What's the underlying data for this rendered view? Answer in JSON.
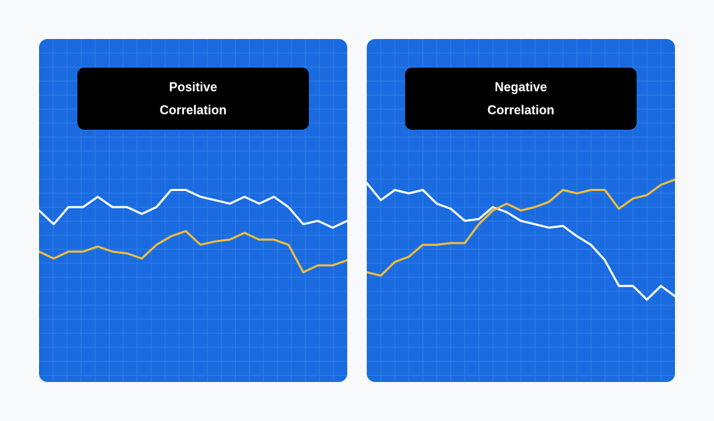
{
  "colors": {
    "background": "#f8f9fa",
    "panel": "#1a6be0",
    "grid": "#2f7ee8",
    "title_box": "#000000",
    "title_text": "#ffffff",
    "series_white": "#ffffff",
    "series_yellow": "#f0bd3c"
  },
  "chart_data": [
    {
      "type": "line",
      "title_line1": "Positive",
      "title_line2": "Correlation",
      "x": [
        0,
        1,
        2,
        3,
        4,
        5,
        6,
        7,
        8,
        9,
        10,
        11,
        12,
        13,
        14,
        15,
        16,
        17,
        18,
        19,
        20,
        21
      ],
      "ylim": [
        0,
        100
      ],
      "grid": true,
      "series": [
        {
          "color": "white",
          "values": [
            50,
            46,
            51,
            51,
            54,
            51,
            51,
            49,
            51,
            56,
            56,
            54,
            53,
            52,
            54,
            52,
            54,
            51,
            46,
            47,
            45,
            47
          ]
        },
        {
          "color": "yellow",
          "values": [
            38,
            36,
            38,
            38,
            39.5,
            38,
            37.5,
            36,
            40,
            42.5,
            44,
            40,
            41,
            41.5,
            43.5,
            41.5,
            41.5,
            40,
            32,
            34,
            34,
            35.5
          ]
        }
      ]
    },
    {
      "type": "line",
      "title_line1": "Negative",
      "title_line2": "Correlation",
      "x": [
        0,
        1,
        2,
        3,
        4,
        5,
        6,
        7,
        8,
        9,
        10,
        11,
        12,
        13,
        14,
        15,
        16,
        17,
        18,
        19,
        20,
        21,
        22
      ],
      "ylim": [
        0,
        100
      ],
      "grid": true,
      "series": [
        {
          "color": "white",
          "values": [
            58,
            53,
            56,
            55,
            56,
            52,
            50.5,
            47,
            47.5,
            51,
            49.5,
            47,
            46,
            45,
            45.5,
            42.5,
            40,
            35.5,
            28,
            28,
            24,
            28,
            25
          ]
        },
        {
          "color": "yellow",
          "values": [
            32,
            31,
            35,
            36.5,
            40,
            40,
            40.5,
            40.5,
            46,
            50,
            52,
            50,
            51,
            52.5,
            56,
            55,
            56,
            56,
            50.5,
            53.5,
            54.5,
            57.5,
            59
          ]
        }
      ]
    }
  ]
}
